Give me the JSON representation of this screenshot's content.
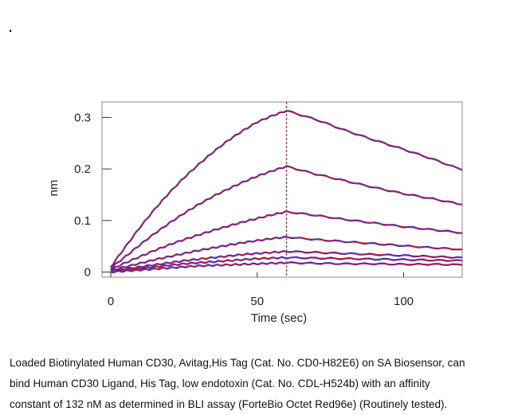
{
  "page": {
    "bullet": "."
  },
  "chart_data": {
    "type": "line",
    "xlabel": "Time (sec)",
    "ylabel": "nm",
    "xlim": [
      -3,
      120
    ],
    "ylim": [
      -0.01,
      0.33
    ],
    "x_ticks": [
      0,
      50,
      100
    ],
    "y_ticks": [
      0,
      0.1,
      0.2,
      0.3
    ],
    "x_tick_labels": [
      "0",
      "50",
      "100"
    ],
    "y_tick_labels": [
      "0",
      "0.1",
      "0.2",
      "0.3"
    ],
    "grid": false,
    "legend": "none",
    "dissociation_start_sec": 60,
    "observed_color": "#2b2bd9",
    "fit_color": "#d81e1e",
    "marker_color": "#d81e1e",
    "series": [
      {
        "x": [
          0,
          5,
          10,
          15,
          20,
          25,
          30,
          35,
          40,
          45,
          50,
          55,
          60,
          70,
          80,
          90,
          100,
          110,
          120
        ],
        "values": [
          0.01,
          0.049,
          0.087,
          0.122,
          0.154,
          0.183,
          0.209,
          0.233,
          0.255,
          0.274,
          0.291,
          0.303,
          0.313,
          0.296,
          0.275,
          0.256,
          0.238,
          0.219,
          0.198
        ]
      },
      {
        "x": [
          0,
          5,
          10,
          15,
          20,
          25,
          30,
          35,
          40,
          45,
          50,
          55,
          60,
          70,
          80,
          90,
          100,
          110,
          120
        ],
        "values": [
          0.008,
          0.03,
          0.053,
          0.075,
          0.095,
          0.114,
          0.131,
          0.147,
          0.161,
          0.174,
          0.186,
          0.196,
          0.205,
          0.19,
          0.177,
          0.164,
          0.152,
          0.142,
          0.131
        ]
      },
      {
        "x": [
          0,
          5,
          10,
          15,
          20,
          25,
          30,
          35,
          40,
          45,
          50,
          55,
          60,
          70,
          80,
          90,
          100,
          110,
          120
        ],
        "values": [
          0.005,
          0.018,
          0.03,
          0.042,
          0.053,
          0.063,
          0.072,
          0.081,
          0.089,
          0.097,
          0.104,
          0.111,
          0.117,
          0.11,
          0.102,
          0.095,
          0.088,
          0.082,
          0.076
        ]
      },
      {
        "x": [
          0,
          5,
          10,
          15,
          20,
          25,
          30,
          35,
          40,
          45,
          50,
          55,
          60,
          70,
          80,
          90,
          100,
          110,
          120
        ],
        "values": [
          0.003,
          0.01,
          0.017,
          0.024,
          0.03,
          0.036,
          0.042,
          0.047,
          0.052,
          0.057,
          0.061,
          0.065,
          0.068,
          0.063,
          0.059,
          0.055,
          0.051,
          0.047,
          0.044
        ]
      },
      {
        "x": [
          0,
          5,
          10,
          15,
          20,
          25,
          30,
          35,
          40,
          45,
          50,
          55,
          60,
          70,
          80,
          90,
          100,
          110,
          120
        ],
        "values": [
          0.002,
          0.006,
          0.01,
          0.014,
          0.018,
          0.022,
          0.025,
          0.028,
          0.031,
          0.034,
          0.036,
          0.038,
          0.04,
          0.038,
          0.036,
          0.034,
          0.032,
          0.03,
          0.028
        ]
      },
      {
        "x": [
          0,
          5,
          10,
          15,
          20,
          25,
          30,
          35,
          40,
          45,
          50,
          55,
          60,
          70,
          80,
          90,
          100,
          110,
          120
        ],
        "values": [
          0.001,
          0.004,
          0.007,
          0.01,
          0.013,
          0.016,
          0.018,
          0.02,
          0.022,
          0.024,
          0.026,
          0.027,
          0.028,
          0.027,
          0.026,
          0.025,
          0.024,
          0.023,
          0.022
        ]
      },
      {
        "x": [
          0,
          5,
          10,
          15,
          20,
          25,
          30,
          35,
          40,
          45,
          50,
          55,
          60,
          70,
          80,
          90,
          100,
          110,
          120
        ],
        "values": [
          0.0,
          0.002,
          0.004,
          0.006,
          0.008,
          0.01,
          0.012,
          0.013,
          0.014,
          0.015,
          0.016,
          0.017,
          0.018,
          0.017,
          0.016,
          0.016,
          0.015,
          0.015,
          0.014
        ]
      }
    ]
  },
  "caption": {
    "line1": "Loaded Biotinylated Human CD30, Avitag,His Tag (Cat. No. CD0-H82E6) on SA Biosensor, can",
    "line2": "bind Human CD30 Ligand, His Tag, low endotoxin (Cat. No. CDL-H524b) with an affinity",
    "line3": "constant of 132 nM as determined in BLI assay (ForteBio Octet Red96e) (Routinely tested)."
  }
}
